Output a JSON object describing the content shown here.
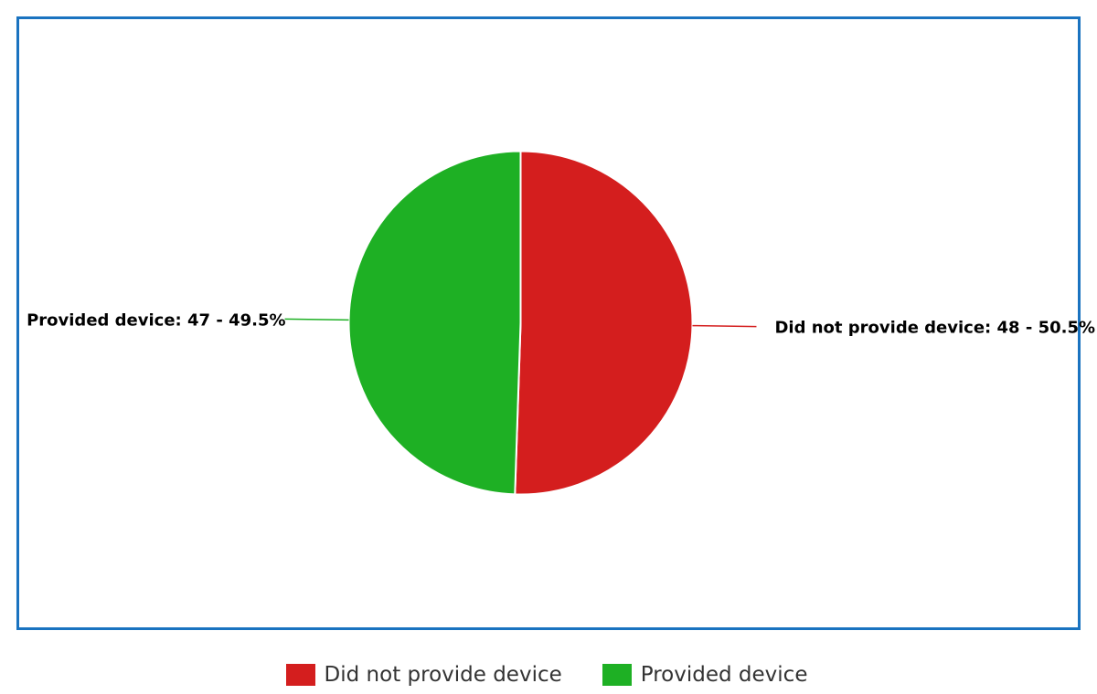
{
  "chart_data": {
    "type": "pie",
    "slices": [
      {
        "name": "Did not provide device",
        "value": 48,
        "percent": 50.5,
        "label": "Did not provide device: 48 - 50.5%",
        "color": "#d41e1e"
      },
      {
        "name": "Provided device",
        "value": 47,
        "percent": 49.5,
        "label": "Provided device: 47 - 49.5%",
        "color": "#1eb024"
      }
    ],
    "legend": {
      "placement": "bottom",
      "items": [
        {
          "label": "Did not provide device",
          "color": "#d41e1e"
        },
        {
          "label": "Provided device",
          "color": "#1eb024"
        }
      ]
    },
    "border_color": "#1a73c0"
  }
}
